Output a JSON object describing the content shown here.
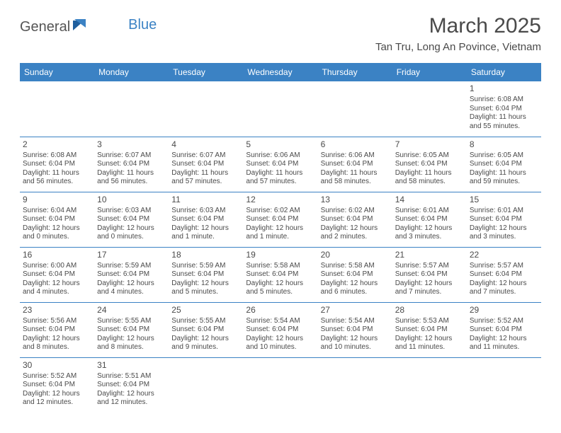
{
  "brand": {
    "part1": "General",
    "part2": "Blue"
  },
  "title": "March 2025",
  "location": "Tan Tru, Long An Povince, Vietnam",
  "colors": {
    "header_bg": "#3b82c4",
    "header_text": "#ffffff",
    "rule": "#3b82c4",
    "text": "#4a4a4a",
    "background": "#ffffff"
  },
  "weekdays": [
    "Sunday",
    "Monday",
    "Tuesday",
    "Wednesday",
    "Thursday",
    "Friday",
    "Saturday"
  ],
  "weeks": [
    [
      null,
      null,
      null,
      null,
      null,
      null,
      {
        "n": "1",
        "sr": "Sunrise: 6:08 AM",
        "ss": "Sunset: 6:04 PM",
        "d1": "Daylight: 11 hours",
        "d2": "and 55 minutes."
      }
    ],
    [
      {
        "n": "2",
        "sr": "Sunrise: 6:08 AM",
        "ss": "Sunset: 6:04 PM",
        "d1": "Daylight: 11 hours",
        "d2": "and 56 minutes."
      },
      {
        "n": "3",
        "sr": "Sunrise: 6:07 AM",
        "ss": "Sunset: 6:04 PM",
        "d1": "Daylight: 11 hours",
        "d2": "and 56 minutes."
      },
      {
        "n": "4",
        "sr": "Sunrise: 6:07 AM",
        "ss": "Sunset: 6:04 PM",
        "d1": "Daylight: 11 hours",
        "d2": "and 57 minutes."
      },
      {
        "n": "5",
        "sr": "Sunrise: 6:06 AM",
        "ss": "Sunset: 6:04 PM",
        "d1": "Daylight: 11 hours",
        "d2": "and 57 minutes."
      },
      {
        "n": "6",
        "sr": "Sunrise: 6:06 AM",
        "ss": "Sunset: 6:04 PM",
        "d1": "Daylight: 11 hours",
        "d2": "and 58 minutes."
      },
      {
        "n": "7",
        "sr": "Sunrise: 6:05 AM",
        "ss": "Sunset: 6:04 PM",
        "d1": "Daylight: 11 hours",
        "d2": "and 58 minutes."
      },
      {
        "n": "8",
        "sr": "Sunrise: 6:05 AM",
        "ss": "Sunset: 6:04 PM",
        "d1": "Daylight: 11 hours",
        "d2": "and 59 minutes."
      }
    ],
    [
      {
        "n": "9",
        "sr": "Sunrise: 6:04 AM",
        "ss": "Sunset: 6:04 PM",
        "d1": "Daylight: 12 hours",
        "d2": "and 0 minutes."
      },
      {
        "n": "10",
        "sr": "Sunrise: 6:03 AM",
        "ss": "Sunset: 6:04 PM",
        "d1": "Daylight: 12 hours",
        "d2": "and 0 minutes."
      },
      {
        "n": "11",
        "sr": "Sunrise: 6:03 AM",
        "ss": "Sunset: 6:04 PM",
        "d1": "Daylight: 12 hours",
        "d2": "and 1 minute."
      },
      {
        "n": "12",
        "sr": "Sunrise: 6:02 AM",
        "ss": "Sunset: 6:04 PM",
        "d1": "Daylight: 12 hours",
        "d2": "and 1 minute."
      },
      {
        "n": "13",
        "sr": "Sunrise: 6:02 AM",
        "ss": "Sunset: 6:04 PM",
        "d1": "Daylight: 12 hours",
        "d2": "and 2 minutes."
      },
      {
        "n": "14",
        "sr": "Sunrise: 6:01 AM",
        "ss": "Sunset: 6:04 PM",
        "d1": "Daylight: 12 hours",
        "d2": "and 3 minutes."
      },
      {
        "n": "15",
        "sr": "Sunrise: 6:01 AM",
        "ss": "Sunset: 6:04 PM",
        "d1": "Daylight: 12 hours",
        "d2": "and 3 minutes."
      }
    ],
    [
      {
        "n": "16",
        "sr": "Sunrise: 6:00 AM",
        "ss": "Sunset: 6:04 PM",
        "d1": "Daylight: 12 hours",
        "d2": "and 4 minutes."
      },
      {
        "n": "17",
        "sr": "Sunrise: 5:59 AM",
        "ss": "Sunset: 6:04 PM",
        "d1": "Daylight: 12 hours",
        "d2": "and 4 minutes."
      },
      {
        "n": "18",
        "sr": "Sunrise: 5:59 AM",
        "ss": "Sunset: 6:04 PM",
        "d1": "Daylight: 12 hours",
        "d2": "and 5 minutes."
      },
      {
        "n": "19",
        "sr": "Sunrise: 5:58 AM",
        "ss": "Sunset: 6:04 PM",
        "d1": "Daylight: 12 hours",
        "d2": "and 5 minutes."
      },
      {
        "n": "20",
        "sr": "Sunrise: 5:58 AM",
        "ss": "Sunset: 6:04 PM",
        "d1": "Daylight: 12 hours",
        "d2": "and 6 minutes."
      },
      {
        "n": "21",
        "sr": "Sunrise: 5:57 AM",
        "ss": "Sunset: 6:04 PM",
        "d1": "Daylight: 12 hours",
        "d2": "and 7 minutes."
      },
      {
        "n": "22",
        "sr": "Sunrise: 5:57 AM",
        "ss": "Sunset: 6:04 PM",
        "d1": "Daylight: 12 hours",
        "d2": "and 7 minutes."
      }
    ],
    [
      {
        "n": "23",
        "sr": "Sunrise: 5:56 AM",
        "ss": "Sunset: 6:04 PM",
        "d1": "Daylight: 12 hours",
        "d2": "and 8 minutes."
      },
      {
        "n": "24",
        "sr": "Sunrise: 5:55 AM",
        "ss": "Sunset: 6:04 PM",
        "d1": "Daylight: 12 hours",
        "d2": "and 8 minutes."
      },
      {
        "n": "25",
        "sr": "Sunrise: 5:55 AM",
        "ss": "Sunset: 6:04 PM",
        "d1": "Daylight: 12 hours",
        "d2": "and 9 minutes."
      },
      {
        "n": "26",
        "sr": "Sunrise: 5:54 AM",
        "ss": "Sunset: 6:04 PM",
        "d1": "Daylight: 12 hours",
        "d2": "and 10 minutes."
      },
      {
        "n": "27",
        "sr": "Sunrise: 5:54 AM",
        "ss": "Sunset: 6:04 PM",
        "d1": "Daylight: 12 hours",
        "d2": "and 10 minutes."
      },
      {
        "n": "28",
        "sr": "Sunrise: 5:53 AM",
        "ss": "Sunset: 6:04 PM",
        "d1": "Daylight: 12 hours",
        "d2": "and 11 minutes."
      },
      {
        "n": "29",
        "sr": "Sunrise: 5:52 AM",
        "ss": "Sunset: 6:04 PM",
        "d1": "Daylight: 12 hours",
        "d2": "and 11 minutes."
      }
    ],
    [
      {
        "n": "30",
        "sr": "Sunrise: 5:52 AM",
        "ss": "Sunset: 6:04 PM",
        "d1": "Daylight: 12 hours",
        "d2": "and 12 minutes."
      },
      {
        "n": "31",
        "sr": "Sunrise: 5:51 AM",
        "ss": "Sunset: 6:04 PM",
        "d1": "Daylight: 12 hours",
        "d2": "and 12 minutes."
      },
      null,
      null,
      null,
      null,
      null
    ]
  ]
}
